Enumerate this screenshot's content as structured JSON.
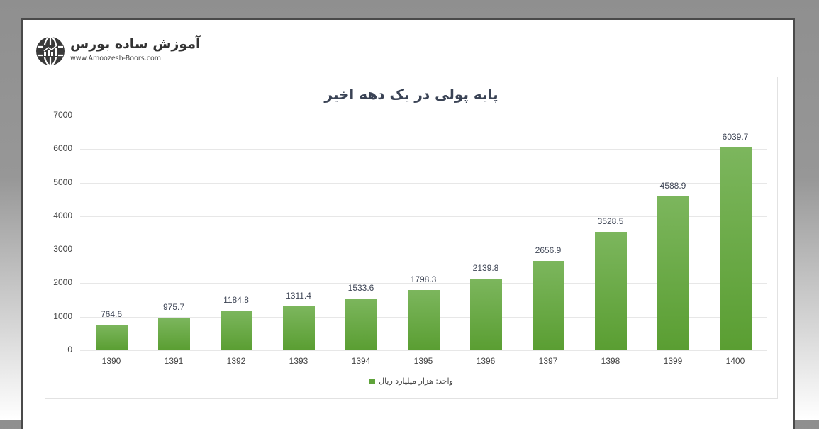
{
  "logo": {
    "name": "آموزش ساده بورس",
    "url": "www.Amoozesh-Boors.com"
  },
  "colors": {
    "bar_top": "#7cb65d",
    "bar_bottom": "#5a9e32",
    "title": "#3a4355",
    "border": "#4a4a4a"
  },
  "chart_data": {
    "type": "bar",
    "title": "پایه پولی در یک دهه اخیر",
    "xlabel": "",
    "ylabel": "",
    "categories": [
      "1390",
      "1391",
      "1392",
      "1393",
      "1394",
      "1395",
      "1396",
      "1397",
      "1398",
      "1399",
      "1400"
    ],
    "series": [
      {
        "name": "واحد: هزار میلیارد ریال",
        "values": [
          764.6,
          975.7,
          1184.8,
          1311.4,
          1533.6,
          1798.3,
          2139.8,
          2656.9,
          3528.5,
          4588.9,
          6039.7
        ]
      }
    ],
    "data_labels": [
      "764.6",
      "975.7",
      "1184.8",
      "1311.4",
      "1533.6",
      "1798.3",
      "2139.8",
      "2656.9",
      "3528.5",
      "4588.9",
      "6039.7"
    ],
    "yticks": [
      "0",
      "1000",
      "2000",
      "3000",
      "4000",
      "5000",
      "6000",
      "7000"
    ],
    "ylim": [
      0,
      7000
    ],
    "grid": true,
    "legend_position": "bottom"
  }
}
